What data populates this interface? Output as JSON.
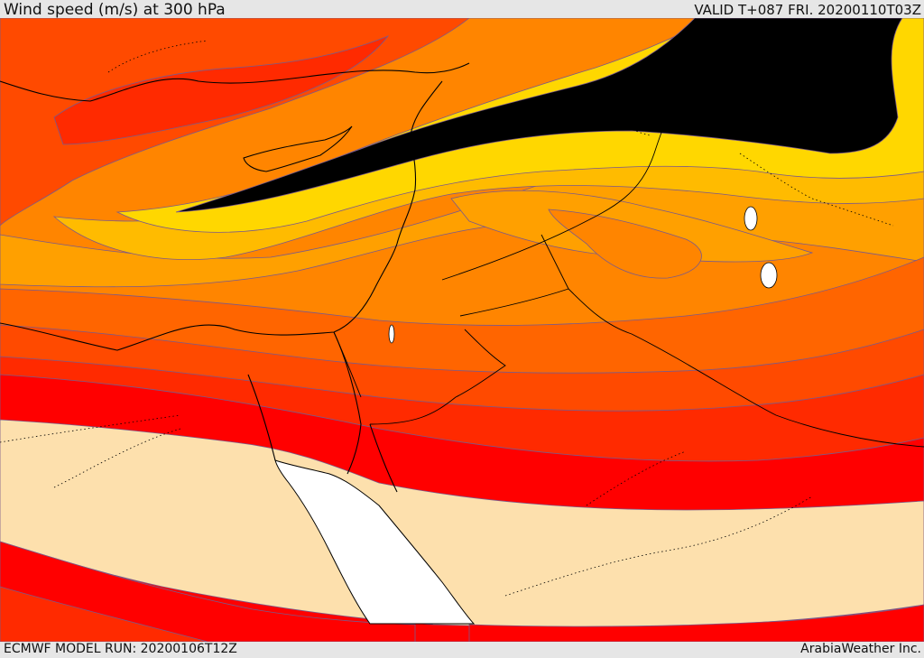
{
  "header": {
    "title": "Wind speed (m/s) at 300 hPa",
    "valid": "VALID T+087 FRI. 20200110T03Z"
  },
  "footer": {
    "model_run": "ECMWF MODEL RUN: 20200106T12Z",
    "credit": "ArabiaWeather Inc."
  },
  "map": {
    "field": "wind speed at 300 hPa",
    "colors": {
      "calm": "#fde0ad",
      "band_1": "#ff0000",
      "band_2": "#ff2a00",
      "band_3": "#ff4a00",
      "band_4": "#ff6500",
      "band_5": "#ff8500",
      "band_6": "#ffa000",
      "band_7": "#ffbb00",
      "band_8": "#ffd700",
      "jet_core": "#ffff00",
      "sea": "#ffffff",
      "contour": "#7a5a8a",
      "border": "#000000"
    }
  }
}
